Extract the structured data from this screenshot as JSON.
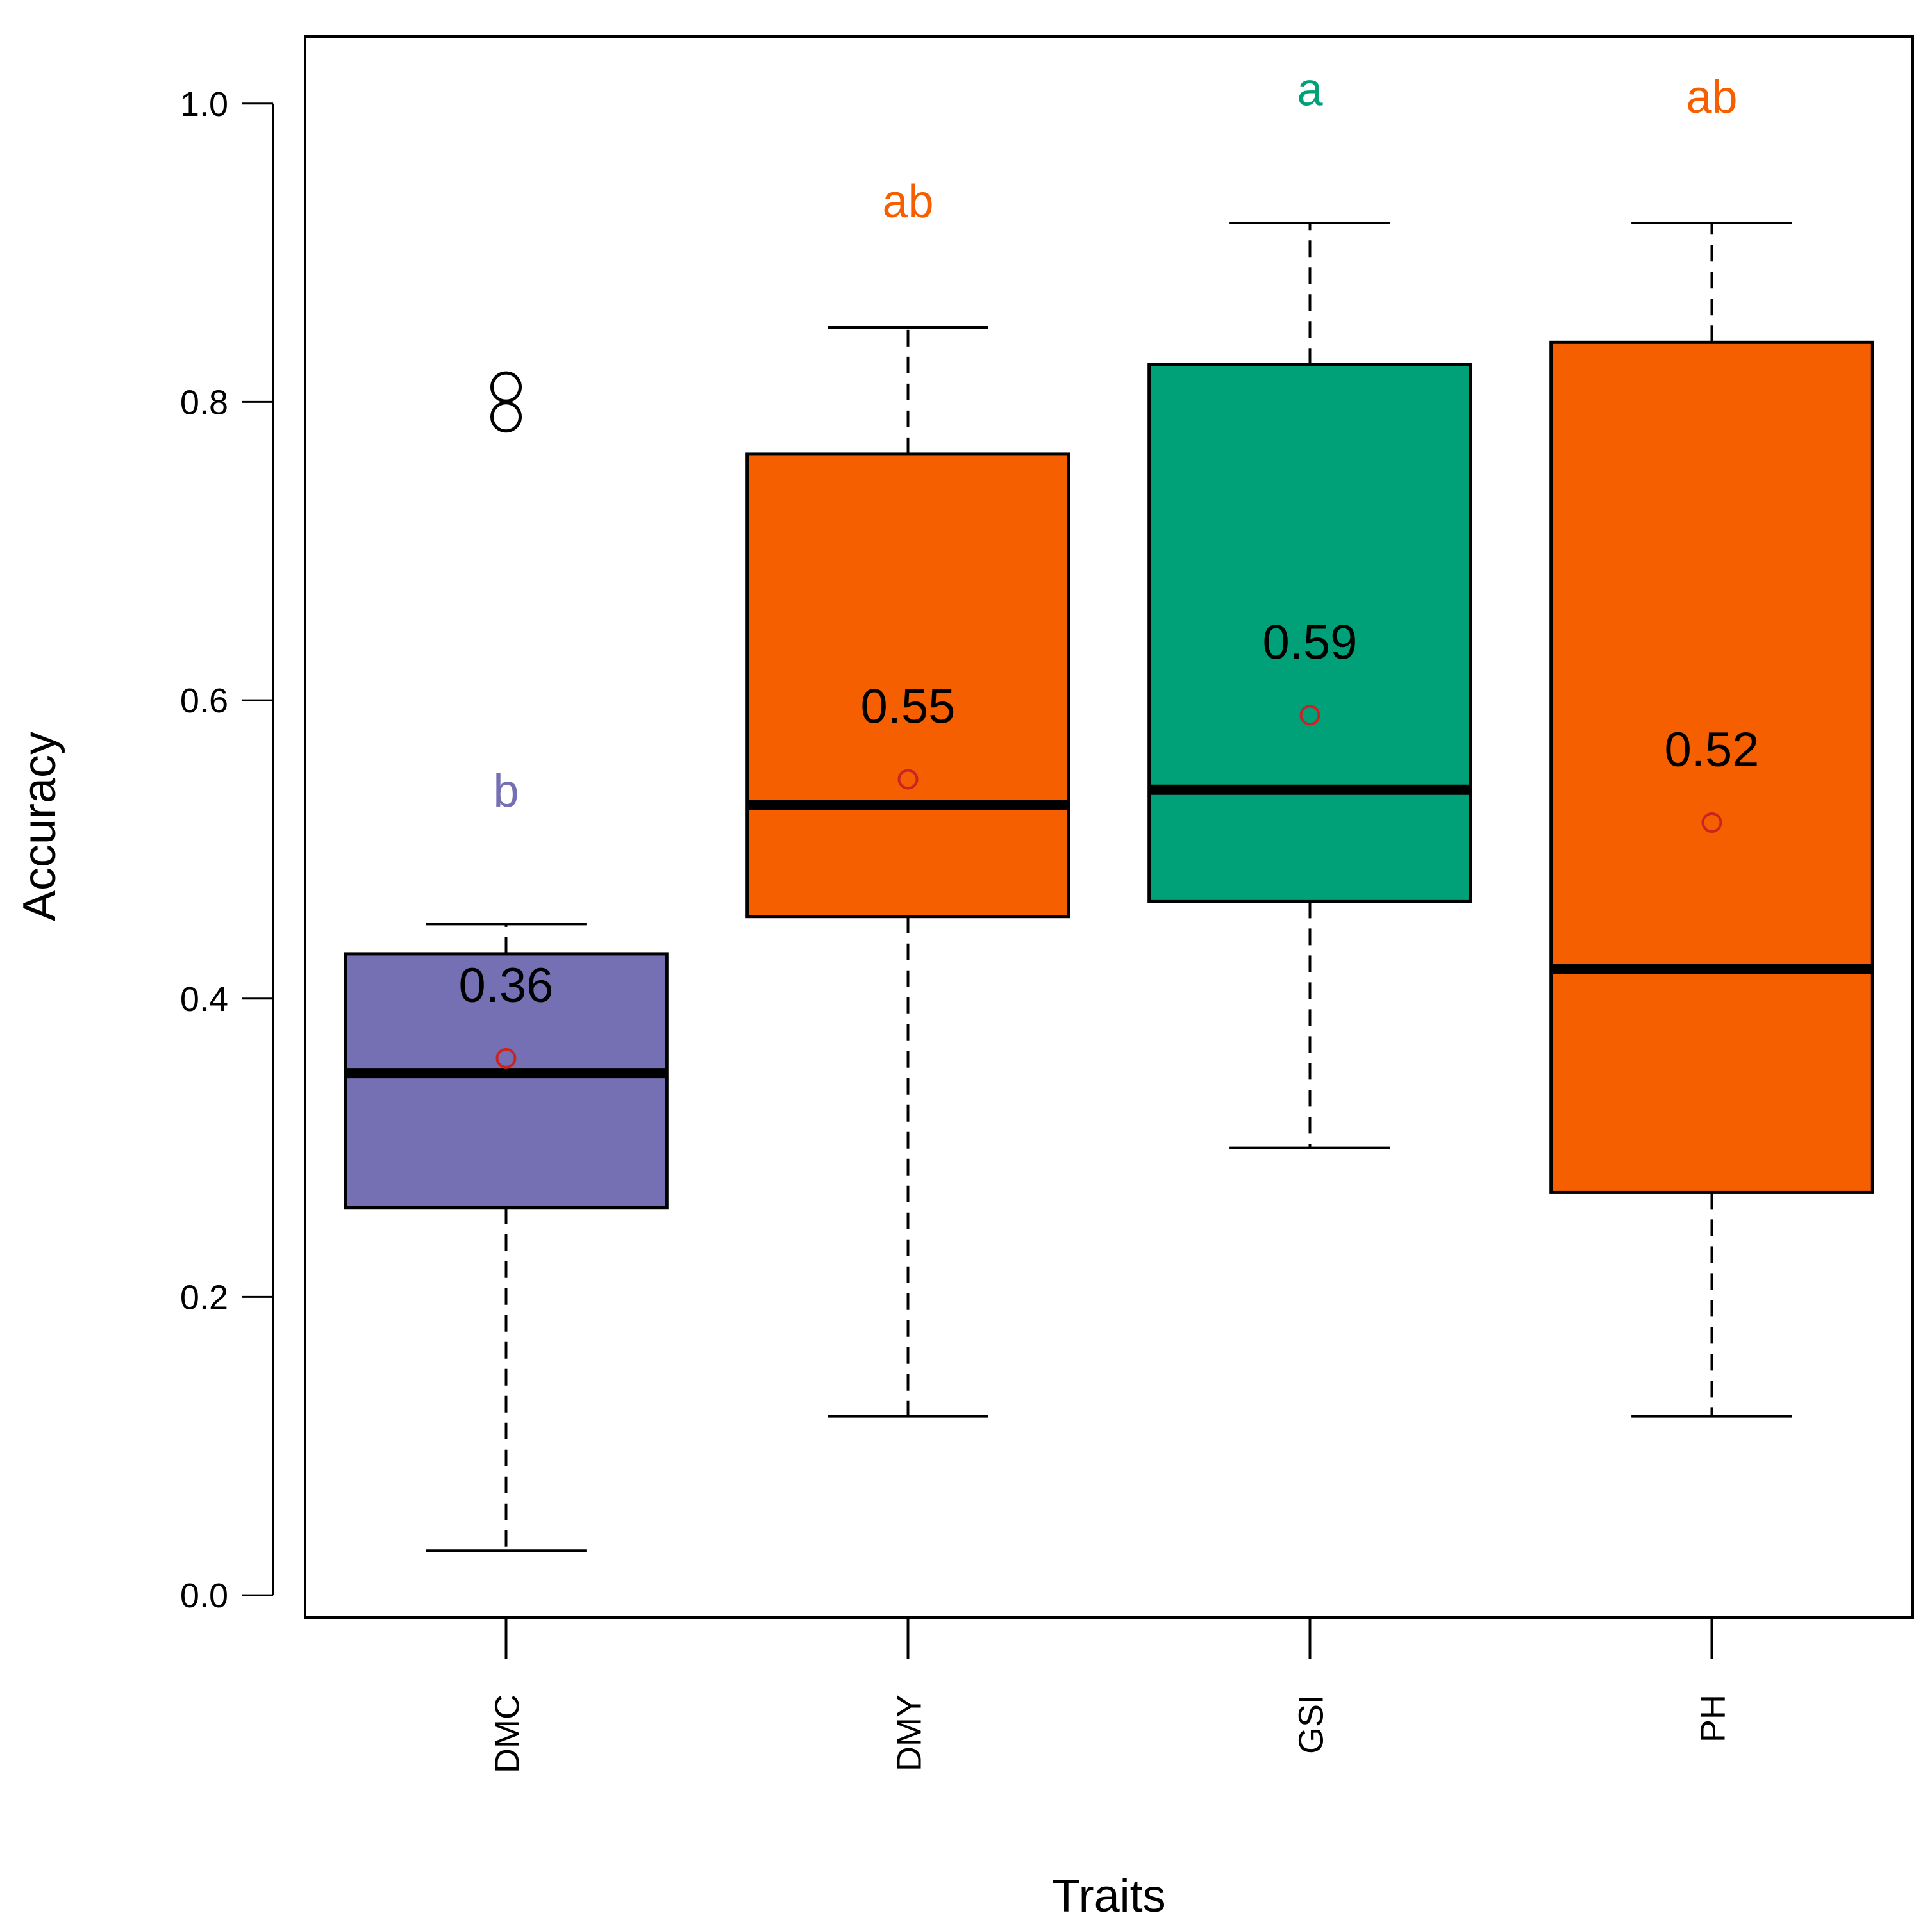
{
  "chart_data": {
    "type": "boxplot",
    "title": "",
    "xlabel": "Traits",
    "ylabel": "Accuracy",
    "ylim": [
      -0.015,
      1.045
    ],
    "yticks": [
      0.0,
      0.2,
      0.4,
      0.6,
      0.8,
      1.0
    ],
    "ytick_labels": [
      "0.0",
      "0.2",
      "0.4",
      "0.6",
      "0.8",
      "1.0"
    ],
    "grid": false,
    "mean_marker_color": "#cc2222",
    "categories": [
      "DMC",
      "DMY",
      "GSI",
      "PH"
    ],
    "boxes": [
      {
        "category": "DMC",
        "color": "#7570b3",
        "whisker_low": 0.03,
        "q1": 0.26,
        "median": 0.35,
        "q3": 0.43,
        "whisker_high": 0.45,
        "mean": 0.36,
        "mean_label": "0.36",
        "outliers": [
          0.81,
          0.79
        ],
        "group_letter": "b",
        "letter_y": 0.54,
        "letter_color": "#7570b3"
      },
      {
        "category": "DMY",
        "color": "#f65f00",
        "whisker_low": 0.12,
        "q1": 0.455,
        "median": 0.53,
        "q3": 0.765,
        "whisker_high": 0.85,
        "mean": 0.547,
        "mean_label": "0.55",
        "outliers": [],
        "group_letter": "ab",
        "letter_y": 0.935,
        "letter_color": "#f65f00"
      },
      {
        "category": "GSI",
        "color": "#00a078",
        "whisker_low": 0.3,
        "q1": 0.465,
        "median": 0.54,
        "q3": 0.825,
        "whisker_high": 0.92,
        "mean": 0.59,
        "mean_label": "0.59",
        "outliers": [],
        "group_letter": "a",
        "letter_y": 1.01,
        "letter_color": "#00a078"
      },
      {
        "category": "PH",
        "color": "#f65f00",
        "whisker_low": 0.12,
        "q1": 0.27,
        "median": 0.42,
        "q3": 0.84,
        "whisker_high": 0.92,
        "mean": 0.518,
        "mean_label": "0.52",
        "outliers": [],
        "group_letter": "ab",
        "letter_y": 1.005,
        "letter_color": "#f65f00"
      }
    ]
  }
}
